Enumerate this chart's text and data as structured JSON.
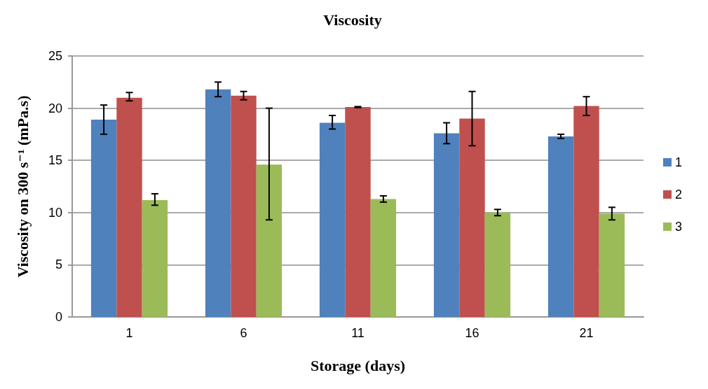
{
  "chart_data": {
    "type": "bar",
    "title": "Viscosity",
    "xlabel": "Storage (days)",
    "ylabel": "Viscosity on 300 s⁻¹ (mPa.s)",
    "categories": [
      "1",
      "6",
      "11",
      "16",
      "21"
    ],
    "series": [
      {
        "name": "1",
        "color": "#4f81bd",
        "values": [
          18.9,
          21.8,
          18.6,
          17.6,
          17.3
        ],
        "errors": [
          [
            17.5,
            20.3
          ],
          [
            21.1,
            22.5
          ],
          [
            18.0,
            19.3
          ],
          [
            16.6,
            18.6
          ],
          [
            17.1,
            17.5
          ]
        ]
      },
      {
        "name": "2",
        "color": "#c0504d",
        "values": [
          21.0,
          21.2,
          20.1,
          19.0,
          20.2
        ],
        "errors": [
          [
            20.7,
            21.5
          ],
          [
            20.8,
            21.6
          ],
          [
            20.05,
            20.15
          ],
          [
            16.4,
            21.6
          ],
          [
            19.3,
            21.1
          ]
        ]
      },
      {
        "name": "3",
        "color": "#9bbb59",
        "values": [
          11.2,
          14.6,
          11.3,
          10.0,
          9.9
        ],
        "errors": [
          [
            10.7,
            11.8
          ],
          [
            9.3,
            20.0
          ],
          [
            11.0,
            11.6
          ],
          [
            9.7,
            10.3
          ],
          [
            9.3,
            10.5
          ]
        ]
      }
    ],
    "ylim": [
      0,
      25
    ],
    "yticks": [
      0,
      5,
      10,
      15,
      20,
      25
    ],
    "grid": "y",
    "legend": "right"
  }
}
